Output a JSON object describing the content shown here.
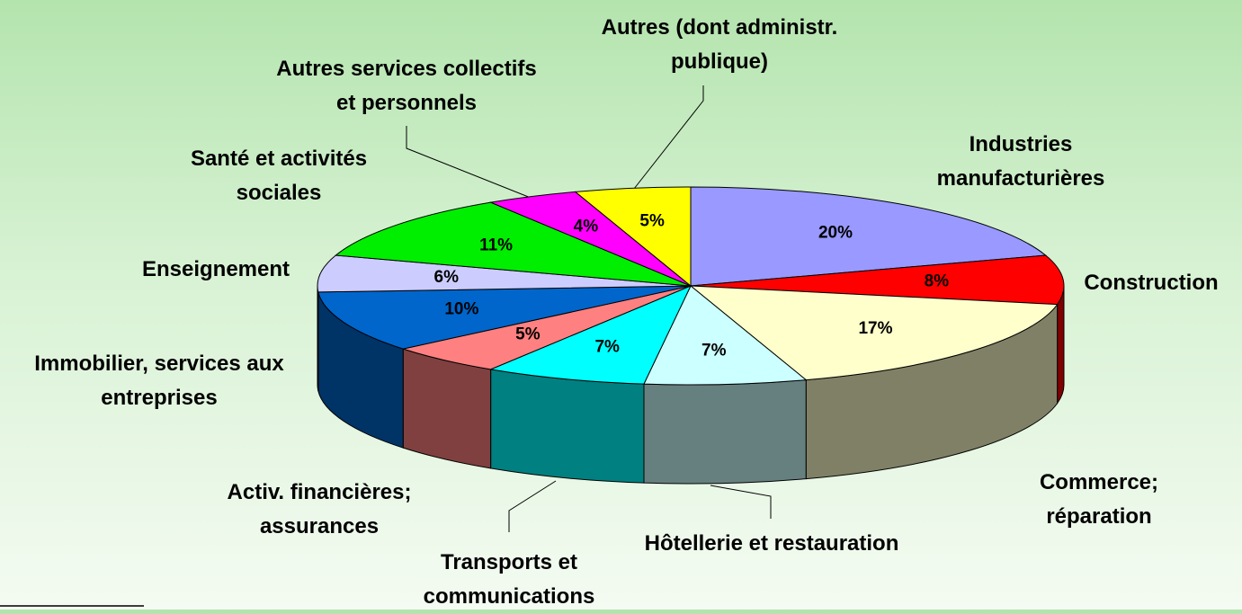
{
  "chart_data": {
    "type": "pie",
    "categories": [
      "Industries\nmanufacturières",
      "Construction",
      "Commerce; réparation",
      "Hôtellerie et restauration",
      "Transports et\ncommunications",
      "Activ. financières;\nassurances",
      "Immobilier, services aux\nentreprises",
      "Enseignement",
      "Santé et activités\nsociales",
      "Autres services collectifs\net personnels",
      "Autres (dont administr.\npublique)"
    ],
    "values": [
      20,
      8,
      17,
      7,
      7,
      5,
      10,
      6,
      11,
      4,
      5
    ],
    "value_labels": [
      "20%",
      "8%",
      "17%",
      "7%",
      "7%",
      "5%",
      "10%",
      "6%",
      "11%",
      "4%",
      "5%"
    ],
    "colors": [
      "#9999ff",
      "#ff0000",
      "#ffffcc",
      "#ccffff",
      "#00ffff",
      "#ff8080",
      "#0066cc",
      "#ccccff",
      "#00ee00",
      "#ff00ff",
      "#ffff00"
    ]
  }
}
